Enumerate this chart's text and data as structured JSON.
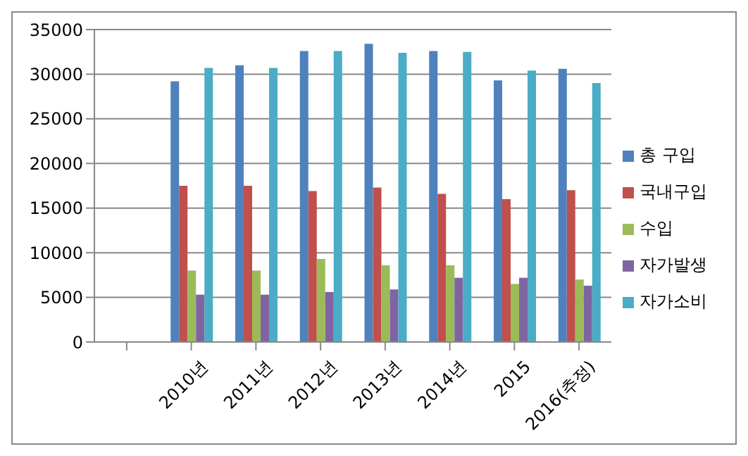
{
  "chart_data": {
    "type": "bar",
    "categories": [
      null,
      "2010년",
      "2011년",
      "2012년",
      "2013년",
      "2014년",
      "2015",
      "2016(추정)"
    ],
    "series": [
      {
        "name": "총 구입",
        "color": "#4f81bd",
        "values": [
          null,
          29200,
          31000,
          32600,
          33400,
          32600,
          29300,
          30600
        ]
      },
      {
        "name": "국내구입",
        "color": "#c0504d",
        "values": [
          null,
          17500,
          17500,
          16900,
          17300,
          16600,
          16000,
          17000
        ]
      },
      {
        "name": "수입",
        "color": "#9bbb59",
        "values": [
          null,
          8000,
          8000,
          9300,
          8600,
          8600,
          6500,
          7000
        ]
      },
      {
        "name": "자가발생",
        "color": "#8064a2",
        "values": [
          null,
          5300,
          5300,
          5600,
          5900,
          7200,
          7200,
          6300
        ]
      },
      {
        "name": "자가소비",
        "color": "#4bacc6",
        "values": [
          null,
          30700,
          30700,
          32600,
          32400,
          32500,
          30400,
          29000
        ]
      }
    ],
    "ylim": [
      0,
      35000
    ],
    "yticks": [
      0,
      5000,
      10000,
      15000,
      20000,
      25000,
      30000,
      35000
    ],
    "grid": "y",
    "legend": "right"
  }
}
